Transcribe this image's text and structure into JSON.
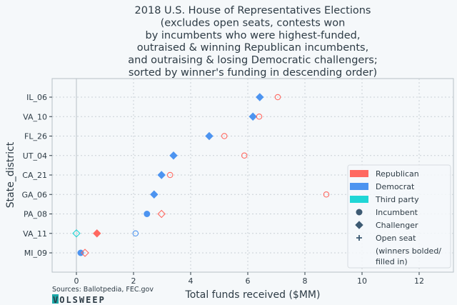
{
  "chart_data": {
    "type": "scatter",
    "title_lines": [
      "2018 U.S. House of Representatives Elections",
      "(excludes open seats, contests won",
      "by incumbents who were highest-funded,",
      "outraised & winning Republican incumbents,",
      "and outraising & losing Democratic challengers;",
      "sorted by winner's funding in descending order)"
    ],
    "xlabel": "Total funds received ($MM)",
    "ylabel": "State_district",
    "xlim": [
      -0.85,
      13.2
    ],
    "xticks": [
      0,
      2,
      4,
      6,
      8,
      10,
      12
    ],
    "grid": true,
    "categories": [
      "IL_06",
      "VA_10",
      "FL_26",
      "UT_04",
      "CA_21",
      "GA_06",
      "PA_08",
      "VA_11",
      "MI_09"
    ],
    "points": [
      {
        "district": "IL_06",
        "party": "Democrat",
        "role": "Challenger",
        "winner": true,
        "value": 6.42
      },
      {
        "district": "IL_06",
        "party": "Republican",
        "role": "Incumbent",
        "winner": false,
        "value": 7.05
      },
      {
        "district": "VA_10",
        "party": "Democrat",
        "role": "Challenger",
        "winner": true,
        "value": 6.18
      },
      {
        "district": "VA_10",
        "party": "Republican",
        "role": "Incumbent",
        "winner": false,
        "value": 6.4
      },
      {
        "district": "FL_26",
        "party": "Democrat",
        "role": "Challenger",
        "winner": true,
        "value": 4.65
      },
      {
        "district": "FL_26",
        "party": "Republican",
        "role": "Incumbent",
        "winner": false,
        "value": 5.18
      },
      {
        "district": "UT_04",
        "party": "Democrat",
        "role": "Challenger",
        "winner": true,
        "value": 3.4
      },
      {
        "district": "UT_04",
        "party": "Republican",
        "role": "Incumbent",
        "winner": false,
        "value": 5.88
      },
      {
        "district": "CA_21",
        "party": "Democrat",
        "role": "Challenger",
        "winner": true,
        "value": 2.98
      },
      {
        "district": "CA_21",
        "party": "Republican",
        "role": "Incumbent",
        "winner": false,
        "value": 3.28
      },
      {
        "district": "GA_06",
        "party": "Democrat",
        "role": "Challenger",
        "winner": true,
        "value": 2.72
      },
      {
        "district": "GA_06",
        "party": "Republican",
        "role": "Incumbent",
        "winner": false,
        "value": 8.75
      },
      {
        "district": "PA_08",
        "party": "Democrat",
        "role": "Incumbent",
        "winner": true,
        "value": 2.47
      },
      {
        "district": "PA_08",
        "party": "Republican",
        "role": "Challenger",
        "winner": false,
        "value": 2.98
      },
      {
        "district": "VA_11",
        "party": "Republican",
        "role": "Challenger",
        "winner": true,
        "value": 0.72
      },
      {
        "district": "VA_11",
        "party": "Democrat",
        "role": "Incumbent",
        "winner": false,
        "value": 2.07
      },
      {
        "district": "VA_11",
        "party": "Third party",
        "role": "Challenger",
        "winner": false,
        "value": 0.0
      },
      {
        "district": "MI_09",
        "party": "Democrat",
        "role": "Incumbent",
        "winner": true,
        "value": 0.15
      },
      {
        "district": "MI_09",
        "party": "Republican",
        "role": "Challenger",
        "winner": false,
        "value": 0.3
      }
    ],
    "legend": {
      "placement": "lower-right",
      "entries": [
        {
          "label": "Republican",
          "kind": "patch",
          "color": "#ff6961"
        },
        {
          "label": "Democrat",
          "kind": "patch",
          "color": "#4d94f0"
        },
        {
          "label": "Third party",
          "kind": "patch",
          "color": "#1fd6d6"
        },
        {
          "label": "Incumbent",
          "kind": "circle",
          "color": "#3d5a73"
        },
        {
          "label": "Challenger",
          "kind": "diamond",
          "color": "#3d5a73"
        },
        {
          "label": "Open seat",
          "kind": "plus",
          "color": "#3d5a73"
        },
        {
          "label": "(winners bolded/",
          "kind": "none"
        },
        {
          "label": "filled in)",
          "kind": "none"
        }
      ]
    },
    "colors": {
      "Republican": "#ff6961",
      "Democrat": "#4d94f0",
      "Third party": "#1fd6d6",
      "text": "#2d3b45",
      "background": "#f5f8fa"
    }
  },
  "footer": {
    "source": "Sources: Ballotpedia, FEC.gov",
    "brand": "VOLSWEEP"
  }
}
